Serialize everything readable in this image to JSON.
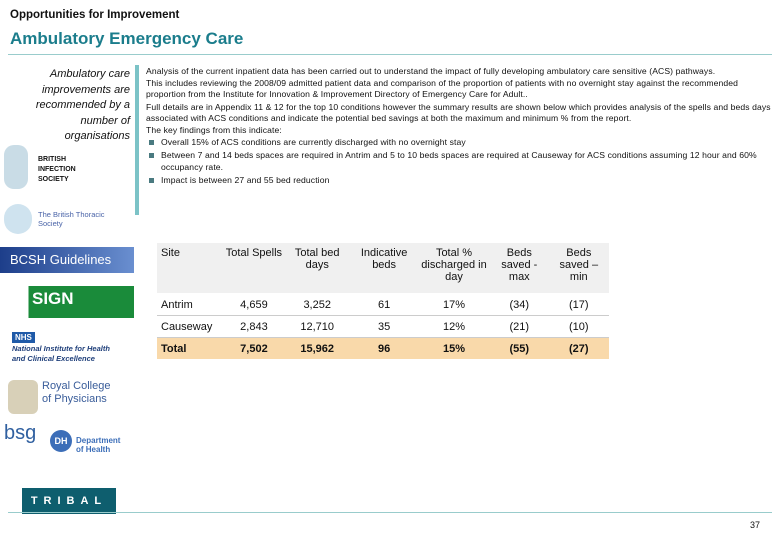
{
  "header": {
    "section": "Opportunities for Improvement",
    "title": "Ambulatory Emergency Care"
  },
  "sidebar": {
    "note": "Ambulatory care improvements are recommended by a number of organisations",
    "logos": [
      "BRITISH INFECTION SOCIETY",
      "The British Thoracic Society",
      "BCSH Guidelines",
      "SIGN",
      "NHS",
      "National Institute for Health and Clinical Excellence",
      "Royal College of Physicians",
      "bsg",
      "DH",
      "Department of Health",
      "TRIBAL"
    ]
  },
  "body": {
    "paragraphs": [
      "Analysis of the current inpatient data has been carried out to understand the impact of fully developing ambulatory care sensitive (ACS) pathways.",
      "This includes reviewing the 2008/09 admitted patient data and comparison of the proportion of patients with no overnight stay against the recommended proportion from the Institute for Innovation & Improvement Directory of Emergency Care for Adult..",
      "Full details are in Appendix 11 & 12 for the top 10 conditions however the summary results are shown below which provides analysis of the spells and beds days associated with ACS conditions and indicate the potential bed savings at both the maximum and minimum % from the report.",
      "The key findings from this indicate:"
    ],
    "bullets": [
      "Overall 15% of ACS conditions are currently discharged with no overnight stay",
      "Between 7 and 14 beds spaces are required in Antrim and 5 to 10 beds spaces are required at Causeway for ACS conditions assuming 12 hour and 60% occupancy rate.",
      "Impact is between 27 and 55 bed reduction"
    ]
  },
  "table": {
    "header": [
      "Site",
      "Total Spells",
      "Total bed days",
      "Indicative beds",
      "Total % discharged in day",
      "Beds saved - max",
      "Beds saved – min"
    ],
    "rows": [
      [
        "Antrim",
        "4,659",
        "3,252",
        "61",
        "17%",
        "(34)",
        "(17)"
      ],
      [
        "Causeway",
        "2,843",
        "12,710",
        "35",
        "12%",
        "(21)",
        "(10)"
      ],
      [
        "Total",
        "7,502",
        "15,962",
        "96",
        "15%",
        "(55)",
        "(27)"
      ]
    ]
  },
  "footer": {
    "page": "37"
  }
}
